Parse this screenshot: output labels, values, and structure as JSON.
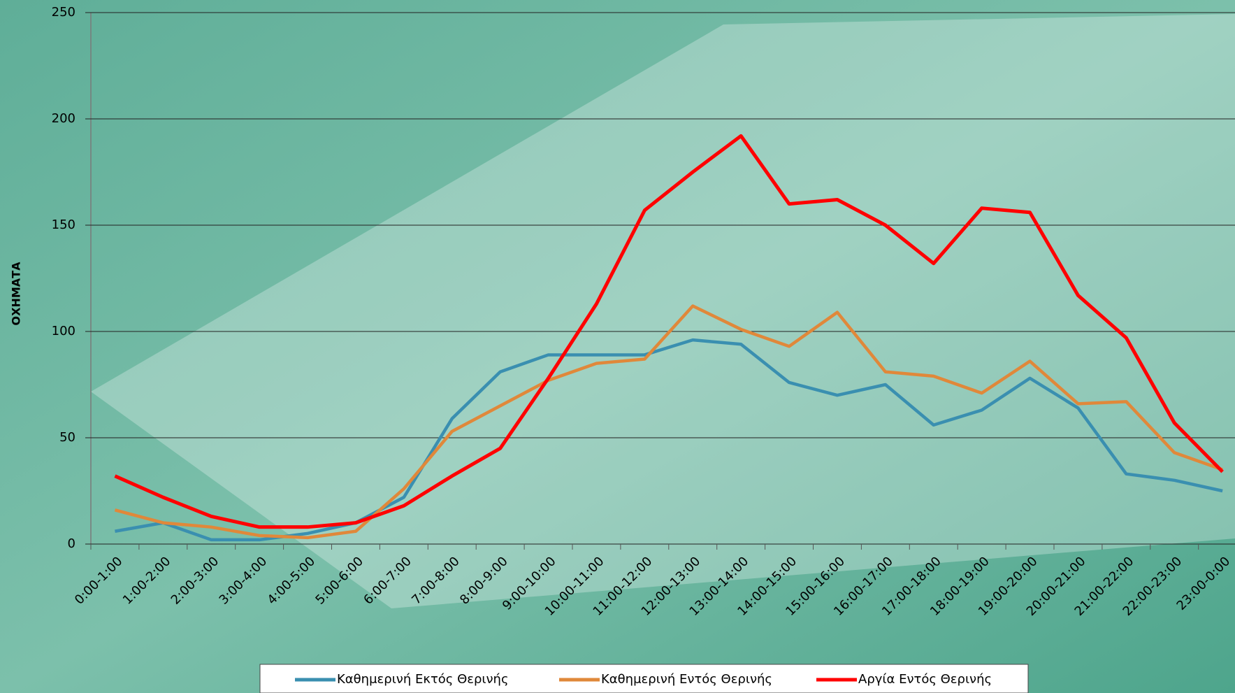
{
  "chart_data": {
    "type": "line",
    "y_label": "ΟΧΗΜΑΤΑ",
    "categories": [
      "0:00-1:00",
      "1:00-2:00",
      "2:00-3:00",
      "3:00-4:00",
      "4:00-5:00",
      "5:00-6:00",
      "6:00-7:00",
      "7:00-8:00",
      "8:00-9:00",
      "9:00-10:00",
      "10:00-11:00",
      "11:00-12:00",
      "12:00-13:00",
      "13:00-14:00",
      "14:00-15:00",
      "15:00-16:00",
      "16:00-17:00",
      "17:00-18:00",
      "18:00-19:00",
      "19:00-20:00",
      "20:00-21:00",
      "21:00-22:00",
      "22:00-23:00",
      "23:00-0:00"
    ],
    "series": [
      {
        "name": "Καθημερινή Εκτός Θερινής",
        "color": "#3a8fb0",
        "values": [
          6,
          10,
          2,
          2,
          5,
          10,
          22,
          59,
          81,
          89,
          89,
          89,
          96,
          94,
          76,
          70,
          75,
          56,
          63,
          78,
          64,
          33,
          30,
          25
        ]
      },
      {
        "name": "Καθημερινή Εντός Θερινής",
        "color": "#e0883a",
        "values": [
          16,
          10,
          8,
          4,
          3,
          6,
          26,
          53,
          65,
          77,
          85,
          87,
          112,
          101,
          93,
          109,
          81,
          79,
          71,
          86,
          66,
          67,
          43,
          35
        ]
      },
      {
        "name": "Αργία Εντός Θερινής",
        "color": "#ff0000",
        "values": [
          32,
          22,
          13,
          8,
          8,
          10,
          18,
          32,
          45,
          78,
          113,
          157,
          175,
          192,
          160,
          162,
          150,
          132,
          158,
          156,
          117,
          97,
          57,
          34
        ]
      }
    ],
    "ylim": [
      0,
      250
    ],
    "yticks": [
      0,
      50,
      100,
      150,
      200,
      250
    ],
    "grid": true,
    "legend": "bottom"
  }
}
